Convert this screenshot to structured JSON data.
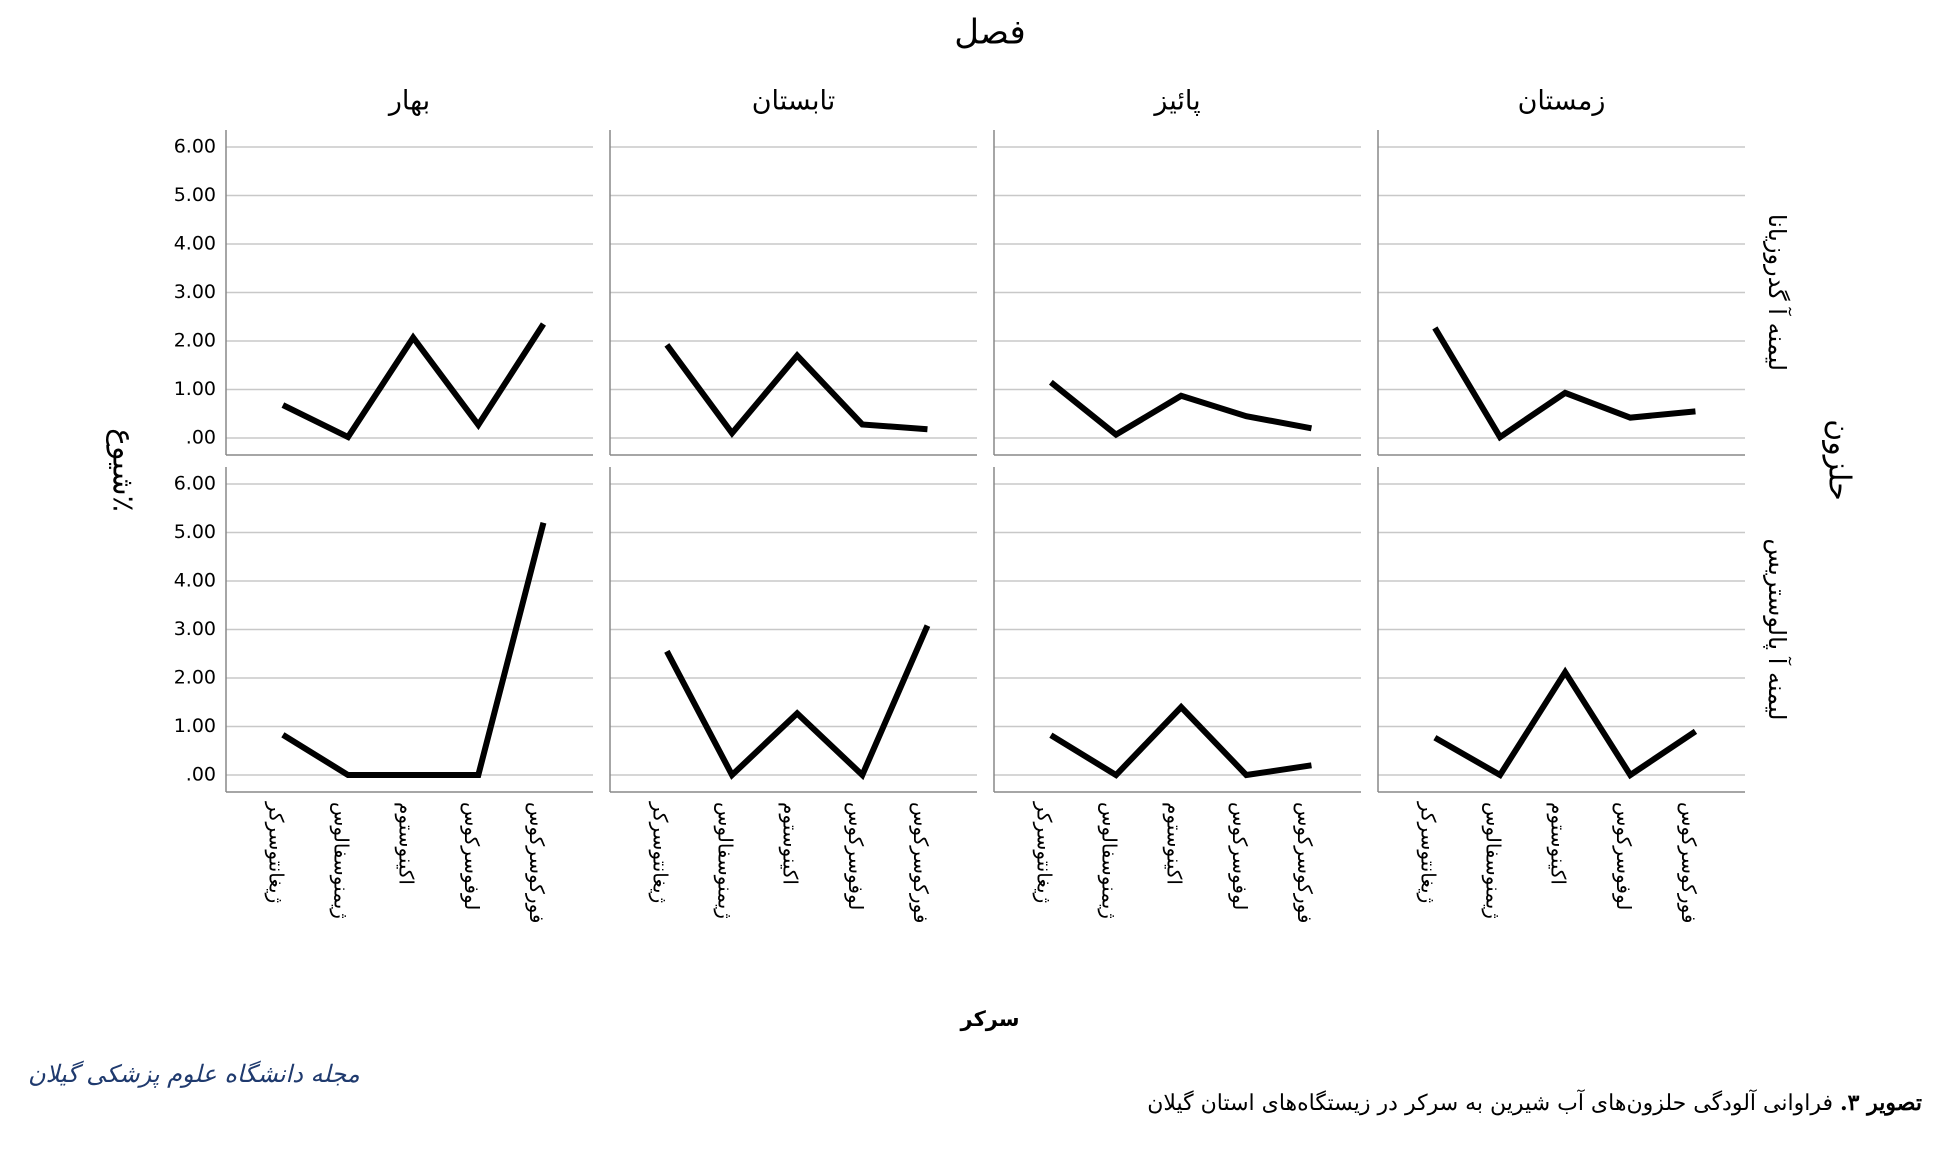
{
  "chart_data": {
    "type": "line",
    "title": "فصل",
    "x_label": "سرکر",
    "y_label": "شیوع٪",
    "row_label": "حلزون",
    "columns": [
      "بهار",
      "تابستان",
      "پائیز",
      "زمستان"
    ],
    "categories": [
      "ژیغانتوسرکر",
      "ژیمنوسفالوس",
      "اکینوستوم",
      "لوفوسرکوس",
      "فورکوسرکوس"
    ],
    "rows": [
      {
        "name": "لیمنه آ گدروزیانا",
        "values": [
          [
            0.68,
            0.02,
            2.07,
            0.27,
            2.35
          ],
          [
            1.92,
            0.1,
            1.7,
            0.28,
            0.18
          ],
          [
            1.15,
            0.07,
            0.87,
            0.45,
            0.2
          ],
          [
            2.27,
            0.02,
            0.93,
            0.42,
            0.55
          ]
        ]
      },
      {
        "name": "لیمنه آ پالوستریس",
        "values": [
          [
            0.83,
            0,
            0,
            0,
            5.2
          ],
          [
            2.55,
            0,
            1.27,
            0,
            3.08
          ],
          [
            0.82,
            0,
            1.4,
            0,
            0.2
          ],
          [
            0.77,
            0,
            2.12,
            0,
            0.9
          ]
        ]
      }
    ],
    "color": "#000000",
    "ylim": [
      -0.35,
      6.35
    ],
    "yticks": [
      {
        "value": 0,
        "label": ".00"
      },
      {
        "value": 1,
        "label": "1.00"
      },
      {
        "value": 2,
        "label": "2.00"
      },
      {
        "value": 3,
        "label": "3.00"
      },
      {
        "value": 4,
        "label": "4.00"
      },
      {
        "value": 5,
        "label": "5.00"
      },
      {
        "value": 6,
        "label": "6.00"
      }
    ],
    "grid": true
  },
  "caption": {
    "label": "تصویر ۳.",
    "text": "فراوانی آلودگی حلزون‌های آب شیرین به سرکر در زیستگاه‌های استان گیلان"
  },
  "journal": "مجله دانشگاه علوم پزشکی گیلان"
}
